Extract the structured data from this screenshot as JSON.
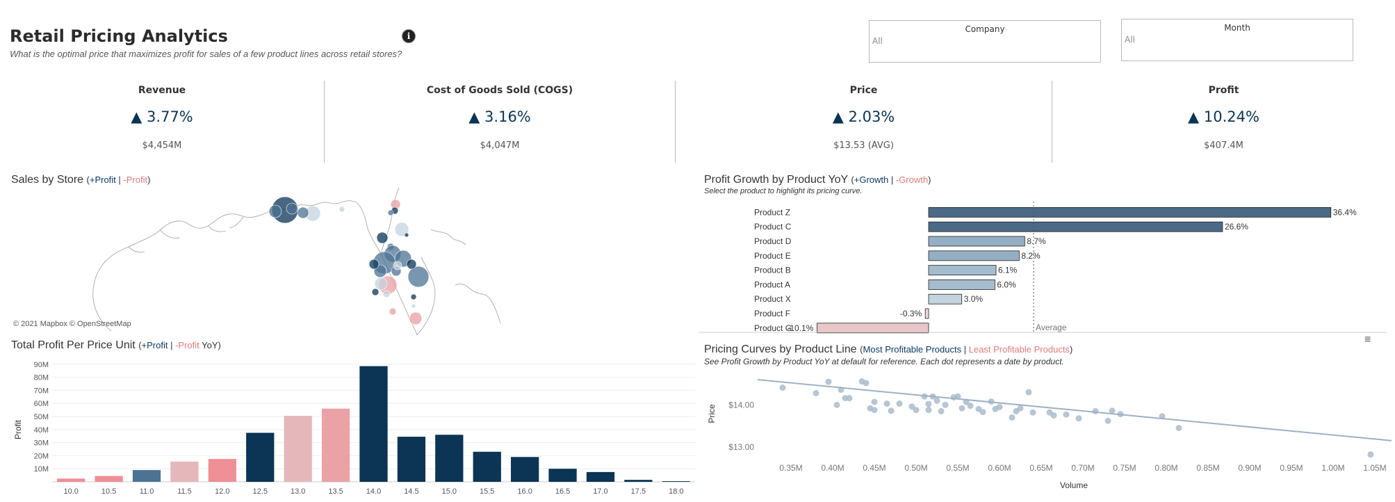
{
  "header": {
    "title": "Retail Pricing Analytics",
    "subtitle": "What is the optimal price that maximizes profit for sales of a few product lines across retail stores?",
    "info_icon": "info-icon"
  },
  "filters": [
    {
      "label": "Company",
      "value": "All"
    },
    {
      "label": "Month",
      "value": "All"
    }
  ],
  "kpis": [
    {
      "label": "Revenue",
      "change": "▲ 3.77%",
      "value": "$4,454M"
    },
    {
      "label": "Cost of Goods Sold (COGS)",
      "change": "▲ 3.16%",
      "value": "$4,047M"
    },
    {
      "label": "Price",
      "change": "▲ 2.03%",
      "value": "$13.53 (AVG)"
    },
    {
      "label": "Profit",
      "change": "▲ 10.24%",
      "value": "$407.4M"
    }
  ],
  "map": {
    "title": "Sales by Store",
    "pos_label": "+Profit",
    "neg_label": "-Profit",
    "attribution": "© 2021 Mapbox © OpenStreetMap"
  },
  "profit_chart": {
    "title": "Total Profit Per Price Unit",
    "pos_label": "+Profit",
    "neg_label": "-Profit",
    "suffix": "YoY",
    "ylabel": "Profit"
  },
  "growth_chart": {
    "title": "Profit Growth by Product YoY",
    "pos_label": "+Growth",
    "neg_label": "-Growth",
    "note": "Select the product to highlight its pricing curve.",
    "average_label": "Average"
  },
  "curve_chart": {
    "title": "Pricing Curves by Product Line",
    "pos_label": "Most Profitable Products",
    "neg_label": "Least Profitable Products",
    "note": "See Profit Growth by Product YoY at default for reference. Each dot represents a date by product.",
    "xlabel": "Volume",
    "ylabel": "Price",
    "menu_icon": "hamburger-menu-icon"
  },
  "colors": {
    "dark_blue": "#0b3455",
    "mid_blue": "#4c7394",
    "light_blue": "#94afc4",
    "pale_blue": "#c5d3de",
    "pink": "#e8a0a4",
    "light_pink": "#e6b7ba",
    "red": "#ee9095",
    "scatter": "#a9bccb"
  },
  "chart_data": [
    {
      "id": "profit_per_price",
      "type": "bar",
      "categories": [
        "10.0",
        "10.5",
        "11.0",
        "11.5",
        "12.0",
        "12.5",
        "13.0",
        "13.5",
        "14.0",
        "14.5",
        "15.0",
        "15.5",
        "16.0",
        "16.5",
        "17.0",
        "17.5",
        "18.0"
      ],
      "values": [
        2.5,
        4.5,
        9,
        15.5,
        17.5,
        37.5,
        50.5,
        56,
        88.5,
        34.5,
        36,
        23,
        19,
        10,
        7.5,
        1.5,
        0.5
      ],
      "colors": [
        "#ee9095",
        "#ee9095",
        "#4c7394",
        "#e6b7ba",
        "#ee9095",
        "#0b3455",
        "#e6b7ba",
        "#eaa2a6",
        "#0b3455",
        "#0b3455",
        "#0b3455",
        "#0b3455",
        "#0b3455",
        "#0b3455",
        "#0b3455",
        "#0b3455",
        "#0b3455"
      ],
      "ylabel": "Profit",
      "yticks": [
        "10M",
        "20M",
        "30M",
        "40M",
        "50M",
        "60M",
        "70M",
        "80M",
        "90M"
      ],
      "ylim": [
        0,
        92
      ],
      "grid": true
    },
    {
      "id": "profit_growth",
      "type": "bar",
      "orientation": "horizontal",
      "categories": [
        "Product Z",
        "Product C",
        "Product D",
        "Product E",
        "Product B",
        "Product A",
        "Product X",
        "Product F",
        "Product G"
      ],
      "values": [
        36.4,
        26.6,
        8.7,
        8.2,
        6.1,
        6.0,
        3.0,
        -0.3,
        -10.1
      ],
      "labels": [
        "36.4%",
        "26.6%",
        "8.7%",
        "8.2%",
        "6.1%",
        "6.0%",
        "3.0%",
        "-0.3%",
        "-10.1%"
      ],
      "colors": [
        "#4a6a86",
        "#4a6a86",
        "#94afc4",
        "#94afc4",
        "#a4bcce",
        "#a4bcce",
        "#c5d3de",
        "#f0d8da",
        "#e9c6c8"
      ],
      "average": 9.5,
      "xlim": [
        -12,
        38
      ]
    },
    {
      "id": "pricing_curve",
      "type": "scatter",
      "xlabel": "Volume",
      "ylabel": "Price",
      "xticks": [
        "0.35M",
        "0.40M",
        "0.45M",
        "0.50M",
        "0.55M",
        "0.60M",
        "0.65M",
        "0.70M",
        "0.75M",
        "0.80M",
        "0.85M",
        "0.90M",
        "0.95M",
        "1.00M",
        "1.05M"
      ],
      "yticks": [
        "$13.00",
        "$14.00"
      ],
      "xlim": [
        0.31,
        1.07
      ],
      "ylim": [
        12.55,
        14.7
      ],
      "points": [
        [
          0.34,
          14.41
        ],
        [
          0.38,
          14.28
        ],
        [
          0.395,
          14.55
        ],
        [
          0.405,
          14.0
        ],
        [
          0.41,
          14.36
        ],
        [
          0.415,
          14.16
        ],
        [
          0.42,
          14.16
        ],
        [
          0.435,
          14.56
        ],
        [
          0.44,
          14.52
        ],
        [
          0.445,
          13.92
        ],
        [
          0.45,
          14.07
        ],
        [
          0.45,
          13.88
        ],
        [
          0.465,
          14.03
        ],
        [
          0.47,
          13.86
        ],
        [
          0.48,
          14.03
        ],
        [
          0.495,
          13.96
        ],
        [
          0.5,
          13.88
        ],
        [
          0.51,
          14.2
        ],
        [
          0.515,
          14.02
        ],
        [
          0.515,
          13.88
        ],
        [
          0.52,
          14.2
        ],
        [
          0.525,
          14.1
        ],
        [
          0.53,
          13.85
        ],
        [
          0.535,
          14.0
        ],
        [
          0.545,
          14.18
        ],
        [
          0.55,
          14.2
        ],
        [
          0.555,
          13.92
        ],
        [
          0.56,
          14.07
        ],
        [
          0.565,
          13.98
        ],
        [
          0.575,
          13.9
        ],
        [
          0.58,
          13.83
        ],
        [
          0.59,
          14.08
        ],
        [
          0.595,
          13.9
        ],
        [
          0.6,
          13.95
        ],
        [
          0.615,
          13.7
        ],
        [
          0.62,
          13.85
        ],
        [
          0.625,
          13.92
        ],
        [
          0.635,
          14.3
        ],
        [
          0.64,
          13.82
        ],
        [
          0.66,
          13.82
        ],
        [
          0.665,
          13.75
        ],
        [
          0.68,
          13.77
        ],
        [
          0.695,
          13.68
        ],
        [
          0.715,
          13.85
        ],
        [
          0.73,
          13.62
        ],
        [
          0.735,
          13.86
        ],
        [
          0.745,
          13.78
        ],
        [
          0.795,
          13.73
        ],
        [
          0.815,
          13.45
        ],
        [
          1.045,
          12.82
        ]
      ],
      "trend": [
        [
          0.31,
          14.6
        ],
        [
          1.07,
          13.15
        ]
      ]
    }
  ]
}
